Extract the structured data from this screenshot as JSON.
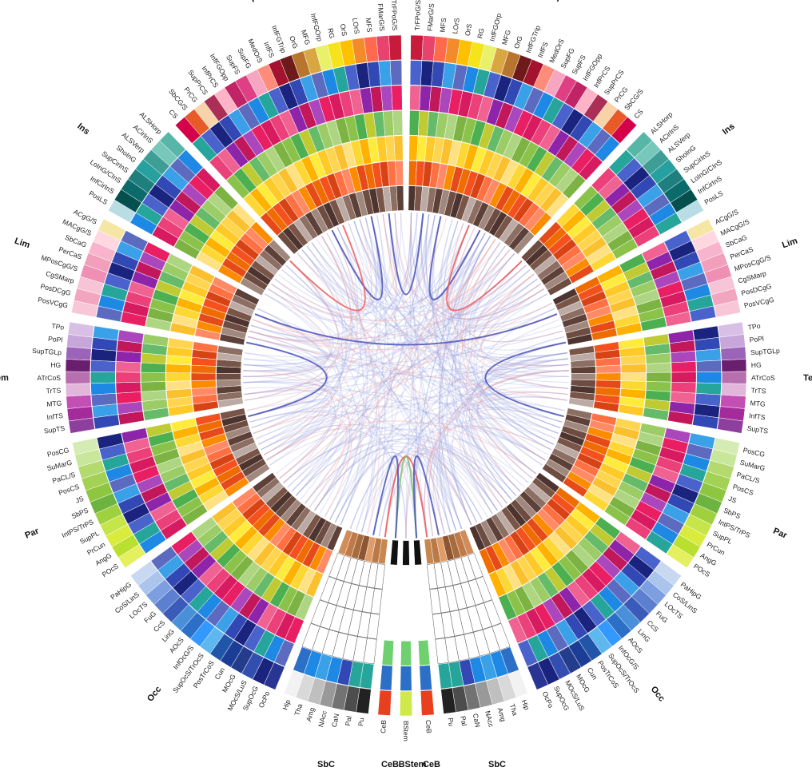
{
  "lobes": [
    {
      "name": "Fr",
      "right": [
        "TrFPoG/S",
        "FMarG/S",
        "MFS",
        "LOrS",
        "OrS",
        "RG",
        "InfFGOrp",
        "MFG",
        "OrG",
        "InfFGTrip",
        "InfFS",
        "MedOrS",
        "SupFG",
        "SupFS",
        "InfFGOpp",
        "InfPrCS",
        "SupPrCS",
        "PrCG",
        "SbCG/S",
        "CS"
      ],
      "left": [
        "TrFPoG/S",
        "FMarG/S",
        "MFS",
        "LOrS",
        "OrS",
        "RG",
        "InfFGOrp",
        "MFG",
        "OrG",
        "InfFGTrip",
        "InfFS",
        "MedOrS",
        "SupFG",
        "SupFS",
        "InfFGOpp",
        "InfPrCS",
        "SupPrCS",
        "PrCG",
        "SbCG/S",
        "CS"
      ]
    },
    {
      "name": "Ins",
      "right": [
        "ALSHorp",
        "ACirInS",
        "ALSVerp",
        "ShoInG",
        "SupCirInS",
        "LoInG/CInS",
        "InfCirInS",
        "PosLS"
      ],
      "left": [
        "ALSHorp",
        "ACirInS",
        "ALSVerp",
        "ShoInG",
        "SupCirInS",
        "LoInG/CInS",
        "InfCirInS",
        "PosLS"
      ]
    },
    {
      "name": "Lim",
      "right": [
        "ACgG/S",
        "MACgG/S",
        "SbCaG",
        "PerCaS",
        "MPosCgG/S",
        "CgSMarp",
        "PosDCgG",
        "PosVCgG"
      ],
      "left": [
        "ACgG/S",
        "MACgG/S",
        "SbCaG",
        "PerCaS",
        "MPosCgG/S",
        "CgSMarp",
        "PosDCgG",
        "PosVCgG"
      ]
    },
    {
      "name": "Tem",
      "right": [
        "TPo",
        "PoPl",
        "SupTGLp",
        "HG",
        "ATrCoS",
        "TrTS",
        "MTG",
        "InfTS",
        "SupTS"
      ],
      "left": [
        "TPo",
        "PoPl",
        "SupTGLp",
        "HG",
        "ATrCoS",
        "TrTS",
        "MTG",
        "InfTS",
        "SupTS"
      ]
    },
    {
      "name": "Par",
      "right": [
        "PosCG",
        "SuMarG",
        "PaCL/S",
        "PosCS",
        "JS",
        "SbPS",
        "IntPS/TrPS",
        "SupPL",
        "PrCun",
        "AngG",
        "POcS"
      ],
      "left": [
        "PosCG",
        "SuMarG",
        "PaCL/S",
        "PosCS",
        "JS",
        "SbPS",
        "IntPS/TrPS",
        "SupPL",
        "PrCun",
        "AngG",
        "POcS"
      ]
    },
    {
      "name": "Occ",
      "right": [
        "PaHipG",
        "CoS/LinS",
        "LOcTS",
        "FuG",
        "CcS",
        "LinG",
        "AOcS",
        "InfOcG/S",
        "SupOcS/TrOcS",
        "PosTrCoS",
        "Cun",
        "MOcG",
        "MOcS/LuS",
        "SupOcG",
        "OcPo"
      ],
      "left": [
        "PaHipG",
        "CoS/LinS",
        "LOcTS",
        "FuG",
        "CcS",
        "LinG",
        "AOcS",
        "InfOcG/S",
        "SupOcS/TrOcS",
        "PosTrCoS",
        "Cun",
        "MOcG",
        "MOcS/LuS",
        "SupOcG",
        "OcPo"
      ]
    },
    {
      "name": "SbC",
      "right": [
        "Hip",
        "Tha",
        "Amg",
        "NAcc",
        "CaN",
        "Pal",
        "Pu"
      ],
      "left": [
        "Hip",
        "Tha",
        "Amg",
        "NAcc",
        "CaN",
        "Pal",
        "Pu"
      ]
    },
    {
      "name": "CeB",
      "right": [
        "CeB"
      ],
      "left": [
        "CeB"
      ]
    }
  ],
  "center_segment": {
    "name": "BStem",
    "label": "BStem"
  },
  "bottom_lobe_labels": [
    "SbC",
    "CeB",
    "BStem",
    "CeB",
    "SbC"
  ],
  "palettes": {
    "outer": [
      "#c81a3a",
      "#e8426e",
      "#ff6a4d",
      "#f38b2a",
      "#ffc000",
      "#f5e31c",
      "#e9f06a",
      "#d9a741",
      "#b7752d",
      "#6e1a1a",
      "#a5122e",
      "#ff8c7a",
      "#f6a6c1",
      "#e03f83",
      "#c12466",
      "#ffb3c7",
      "#aa2e56",
      "#f8d2a8",
      "#e85a28",
      "#d4004a"
    ],
    "ins": [
      "#58b6a8",
      "#77c8bb",
      "#3e9e96",
      "#27a0a0",
      "#1f7f7f",
      "#0b6b6b",
      "#05504f",
      "#b8dde5"
    ],
    "lim": [
      "#f6e6a3",
      "#ffd7e0",
      "#f7b4cc",
      "#f19fbb",
      "#ef8fb4",
      "#f7c3d6",
      "#f1a5bf",
      "#f7c7d8"
    ],
    "tem": [
      "#d8bfe5",
      "#c7a6d9",
      "#9c64b8",
      "#6a1f6e",
      "#b76fb0",
      "#e2b6da",
      "#c44fb4",
      "#a32b9a",
      "#8e3f9e"
    ],
    "par": [
      "#d5ebb4",
      "#c9e79a",
      "#b4d96f",
      "#a2d153",
      "#8ec63f",
      "#6db33f",
      "#9fd03e",
      "#c6e54a",
      "#d9ec3c",
      "#b9df2f",
      "#e4f05d"
    ],
    "occ": [
      "#c8d8f0",
      "#aac4ec",
      "#7d9ee0",
      "#5d7fcf",
      "#3b5bb8",
      "#4a90d9",
      "#2b6fc7",
      "#3399ff",
      "#5fb7f0",
      "#2155a8",
      "#1b3d96",
      "#243c8c",
      "#324fb0",
      "#1a237e",
      "#283593"
    ],
    "sbc": [
      "#f2f2f2",
      "#d9d9d9",
      "#bfbfbf",
      "#999999",
      "#737373",
      "#4d4d4d",
      "#222222"
    ],
    "ring2": [
      "#3248b5",
      "#4a63cc",
      "#1e88e5",
      "#3aa0e8",
      "#1a237e",
      "#26a69a",
      "#5c6bc0"
    ],
    "ring3": [
      "#e91e63",
      "#c2185b",
      "#f06292",
      "#d81b60",
      "#ab47bc",
      "#8e24aa",
      "#ec407a"
    ],
    "ring4": [
      "#8bc34a",
      "#aed581",
      "#66bb6a",
      "#4caf50",
      "#7cb342",
      "#9ccc65",
      "#c0ca33"
    ],
    "ring5": [
      "#ffeb3b",
      "#fdd835",
      "#fbc02d",
      "#ffca28",
      "#ffb300",
      "#ffe082",
      "#ffd54f"
    ],
    "ring6": [
      "#ff7043",
      "#f4511e",
      "#e64a19",
      "#ff8a65",
      "#d84315",
      "#ef6c00",
      "#fb8c00"
    ],
    "ring7": [
      "#a1887f",
      "#8d6e63",
      "#795548",
      "#6d4c41",
      "#5d4037",
      "#bcaaa4",
      "#4e342e"
    ],
    "links": {
      "blue": "#4a52b8",
      "red": "#ee5b5b",
      "green": "#7cc46a",
      "faint_blue": "#9aa0df",
      "faint_red": "#f5a6a6"
    }
  },
  "chart_data": {
    "type": "connectogram",
    "hemispheres": [
      "left",
      "right"
    ],
    "rings": [
      "parcellation",
      "ring2",
      "ring3",
      "ring4",
      "ring5",
      "ring6",
      "ring7"
    ]
  }
}
